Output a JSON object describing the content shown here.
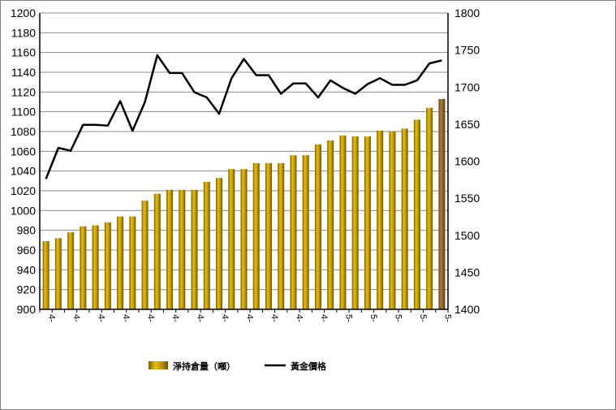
{
  "chart_data": {
    "type": "bar+line",
    "x_tick_labels": [
      "4-",
      "4-",
      "4-",
      "4-",
      "4-",
      "4-",
      "4-",
      "4-",
      "4-",
      "4-",
      "4-",
      "4-",
      "5-",
      "5-",
      "5-",
      "5-",
      "5-",
      "5-"
    ],
    "left_axis": {
      "min": 900,
      "max": 1200,
      "step": 20
    },
    "right_axis": {
      "min": 1400,
      "max": 1800,
      "step": 50
    },
    "grid": true,
    "legend_position": "bottom",
    "series": [
      {
        "name": "淨持倉量（噸）",
        "type": "bar",
        "axis": "left",
        "color": "#C8A000",
        "values": [
          969,
          972,
          978,
          984,
          985,
          988,
          994,
          994,
          1010,
          1017,
          1021,
          1021,
          1021,
          1029,
          1033,
          1042,
          1042,
          1048,
          1048,
          1048,
          1056,
          1056,
          1067,
          1071,
          1076,
          1075,
          1075,
          1081,
          1080,
          1083,
          1092,
          1104,
          1113
        ]
      },
      {
        "name": "黃金價格",
        "type": "line",
        "axis": "right",
        "color": "#000000",
        "values": [
          1576,
          1618,
          1614,
          1649,
          1649,
          1648,
          1681,
          1641,
          1680,
          1743,
          1719,
          1719,
          1693,
          1686,
          1664,
          1712,
          1738,
          1716,
          1716,
          1691,
          1705,
          1705,
          1686,
          1709,
          1699,
          1691,
          1704,
          1712,
          1703,
          1703,
          1709,
          1732,
          1736
        ]
      }
    ]
  }
}
